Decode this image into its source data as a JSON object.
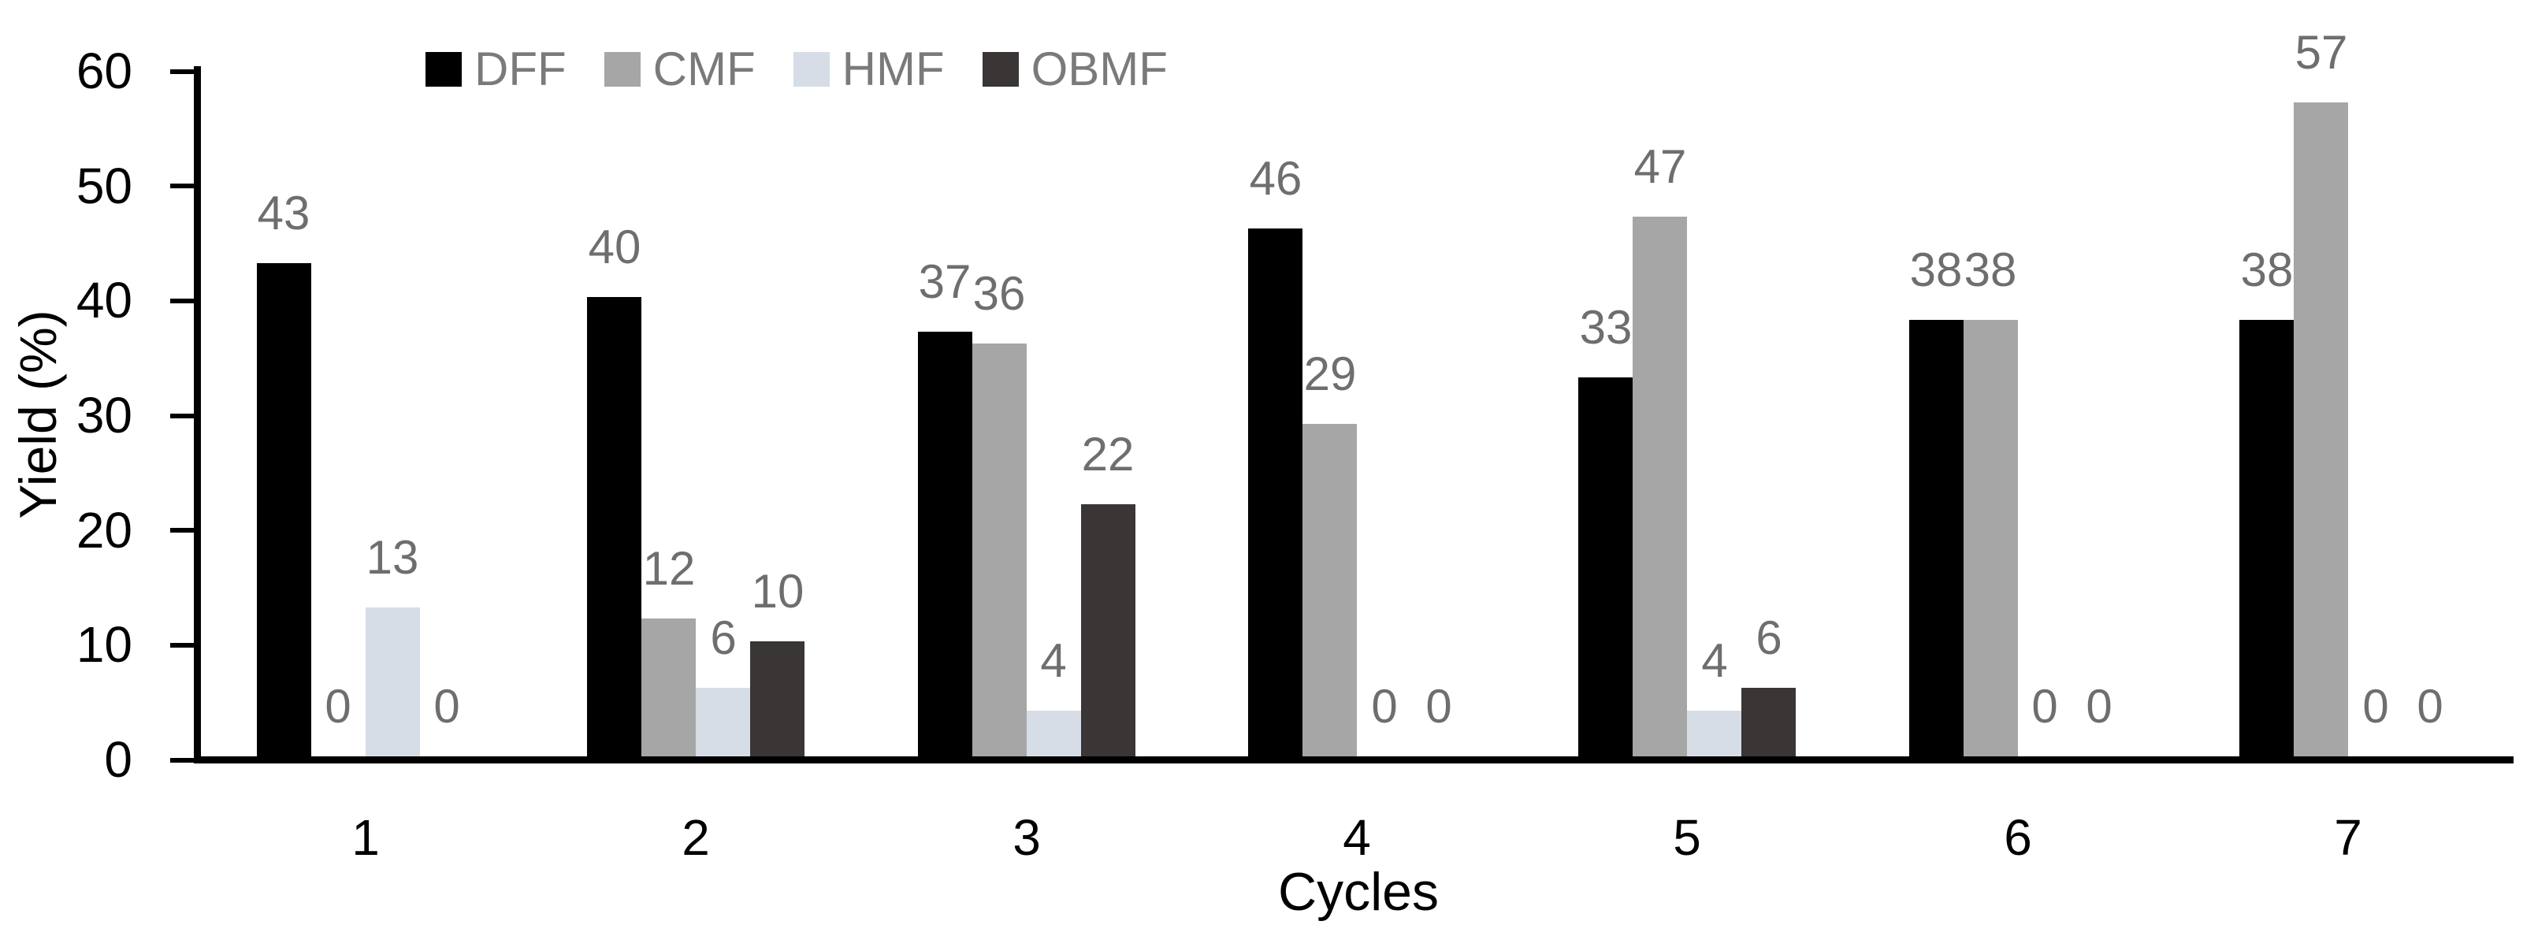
{
  "chart_data": {
    "type": "bar",
    "title": "",
    "xlabel": "Cycles",
    "ylabel": "Yield (%)",
    "ylim": [
      0,
      60
    ],
    "yticks": [
      0,
      10,
      20,
      30,
      40,
      50,
      60
    ],
    "categories": [
      "1",
      "2",
      "3",
      "4",
      "5",
      "6",
      "7"
    ],
    "series": [
      {
        "name": "DFF",
        "color": "#000000",
        "values": [
          43,
          40,
          37,
          46,
          33,
          38,
          38
        ]
      },
      {
        "name": "CMF",
        "color": "#a6a6a6",
        "values": [
          0,
          12,
          36,
          29,
          47,
          38,
          57
        ]
      },
      {
        "name": "HMF",
        "color": "#d6dde6",
        "values": [
          13,
          6,
          4,
          0,
          4,
          0,
          0
        ]
      },
      {
        "name": "OBMF",
        "color": "#3a3636",
        "values": [
          0,
          10,
          22,
          0,
          6,
          0,
          0
        ]
      }
    ],
    "data_labels": true,
    "data_label_color": "#6e6e6e",
    "legend_position": "top",
    "legend_text_color": "#7a7a7a",
    "axis_color": "#000000",
    "grid": false
  }
}
